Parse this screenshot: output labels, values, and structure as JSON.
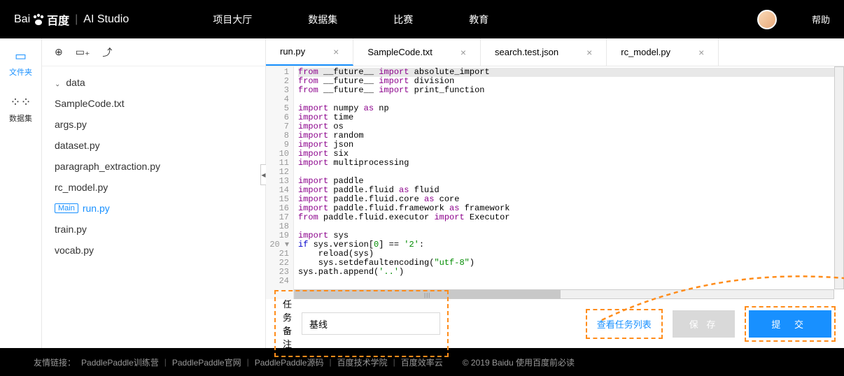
{
  "nav": {
    "logo_prefix": "Bai",
    "logo_text": "百度",
    "product": "AI Studio",
    "items": [
      "项目大厅",
      "数据集",
      "比赛",
      "教育"
    ],
    "help": "帮助"
  },
  "sidebar": {
    "files_label": "文件夹",
    "dataset_label": "数据集"
  },
  "file_tree": {
    "folder": "data",
    "files": [
      "SampleCode.txt",
      "args.py",
      "dataset.py",
      "paragraph_extraction.py",
      "rc_model.py"
    ],
    "main_badge": "Main",
    "main_file": "run.py",
    "files_after": [
      "train.py",
      "vocab.py"
    ]
  },
  "tabs": [
    {
      "name": "run.py",
      "active": true
    },
    {
      "name": "SampleCode.txt",
      "active": false
    },
    {
      "name": "search.test.json",
      "active": false
    },
    {
      "name": "rc_model.py",
      "active": false
    }
  ],
  "code": {
    "lines": 24
  },
  "bottom": {
    "task_label": "任务备注",
    "task_value": "基线",
    "view_tasks": "查看任务列表",
    "save": "保 存",
    "submit": "提 交"
  },
  "footer": {
    "label": "友情链接：",
    "links": [
      "PaddlePaddle训练营",
      "PaddlePaddle官网",
      "PaddlePaddle源码",
      "百度技术学院",
      "百度效率云"
    ],
    "copyright": "© 2019 Baidu 使用百度前必读"
  },
  "colors": {
    "accent": "#1890ff",
    "highlight_border": "#ff8c1a"
  }
}
